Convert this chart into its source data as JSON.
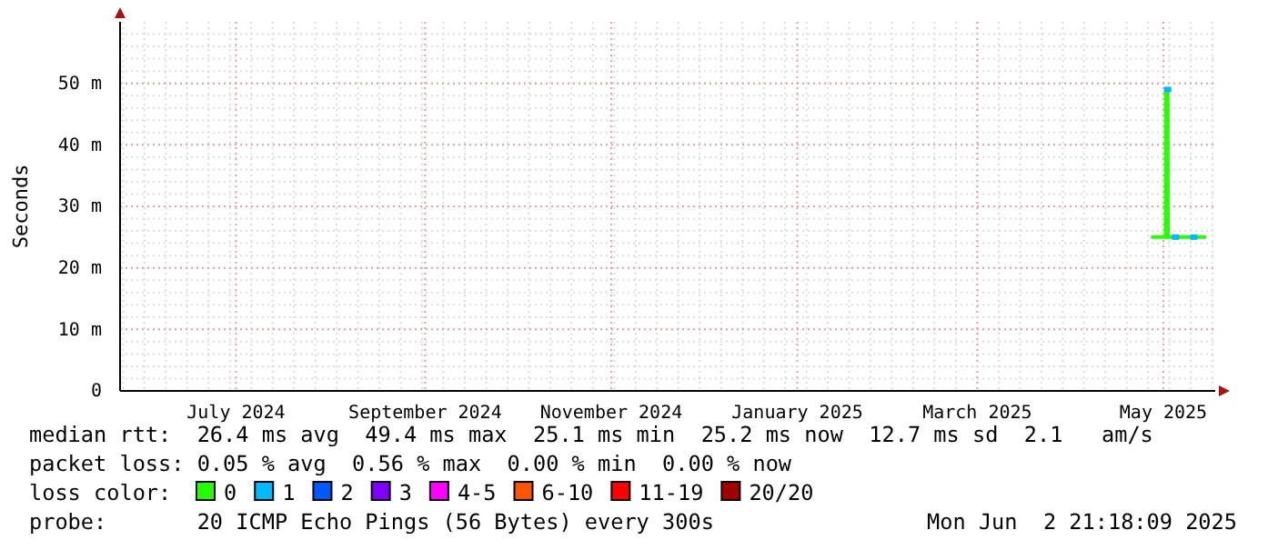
{
  "chart_data": {
    "type": "line",
    "ylabel": "Seconds",
    "x": [
      "2025-05-12",
      "2025-05-14",
      "2025-05-16T18:00",
      "2025-05-16T20:00",
      "2025-05-17T10:00",
      "2025-05-17T12:00",
      "2025-05-20",
      "2025-05-22",
      "2025-05-24",
      "2025-05-26",
      "2025-05-28",
      "2025-05-30"
    ],
    "xlim": [
      "2024-06-08",
      "2025-06-02"
    ],
    "xticks": [
      {
        "value": "2024-07-16",
        "label": "July 2024"
      },
      {
        "value": "2024-09-16",
        "label": "September 2024"
      },
      {
        "value": "2024-11-16",
        "label": "November 2024"
      },
      {
        "value": "2025-01-16",
        "label": "January 2025"
      },
      {
        "value": "2025-03-16",
        "label": "March 2025"
      },
      {
        "value": "2025-05-16",
        "label": "May 2025"
      }
    ],
    "ylim": [
      0,
      60
    ],
    "yticks": [
      0,
      {
        "value": 10,
        "label": "10 m"
      },
      {
        "value": 20,
        "label": "20 m"
      },
      {
        "value": 30,
        "label": "30 m"
      },
      {
        "value": 40,
        "label": "40 m"
      },
      {
        "value": 50,
        "label": "50 m"
      }
    ],
    "grid": true,
    "legend": "bottom",
    "legend_title": "loss color:",
    "series": [
      {
        "name": "0",
        "color": "#26ff00",
        "values": [
          25,
          25,
          25,
          49,
          49,
          25,
          25,
          25,
          25,
          25,
          25,
          25
        ]
      },
      {
        "name": "1",
        "color": "#00b8ff",
        "type": "scatter",
        "values": [
          null,
          null,
          null,
          null,
          49,
          null,
          25,
          null,
          null,
          25,
          null,
          null
        ]
      },
      {
        "name": "2",
        "color": "#0059ff",
        "values": [
          null,
          null,
          null,
          null,
          null,
          null,
          null,
          null,
          null,
          null,
          null,
          null
        ]
      },
      {
        "name": "3",
        "color": "#7e00ff",
        "values": [
          null,
          null,
          null,
          null,
          null,
          null,
          null,
          null,
          null,
          null,
          null,
          null
        ]
      },
      {
        "name": "4-5",
        "color": "#ff00ff",
        "values": [
          null,
          null,
          null,
          null,
          null,
          null,
          null,
          null,
          null,
          null,
          null,
          null
        ]
      },
      {
        "name": "6-10",
        "color": "#ff5500",
        "values": [
          null,
          null,
          null,
          null,
          null,
          null,
          null,
          null,
          null,
          null,
          null,
          null
        ]
      },
      {
        "name": "11-19",
        "color": "#ff0000",
        "values": [
          null,
          null,
          null,
          null,
          null,
          null,
          null,
          null,
          null,
          null,
          null,
          null
        ]
      },
      {
        "name": "20/20",
        "color": "#a10000",
        "values": [
          null,
          null,
          null,
          null,
          null,
          null,
          null,
          null,
          null,
          null,
          null,
          null
        ]
      }
    ],
    "annotations": [
      "median rtt:  26.4 ms avg  49.4 ms max  25.1 ms min  25.2 ms now  12.7 ms sd  2.1   am/s",
      "packet loss: 0.05 % avg  0.56 % max  0.00 % min  0.00 % now",
      "probe:       20 ICMP Echo Pings (56 Bytes) every 300s",
      "Mon Jun  2 21:18:09 2025"
    ]
  }
}
